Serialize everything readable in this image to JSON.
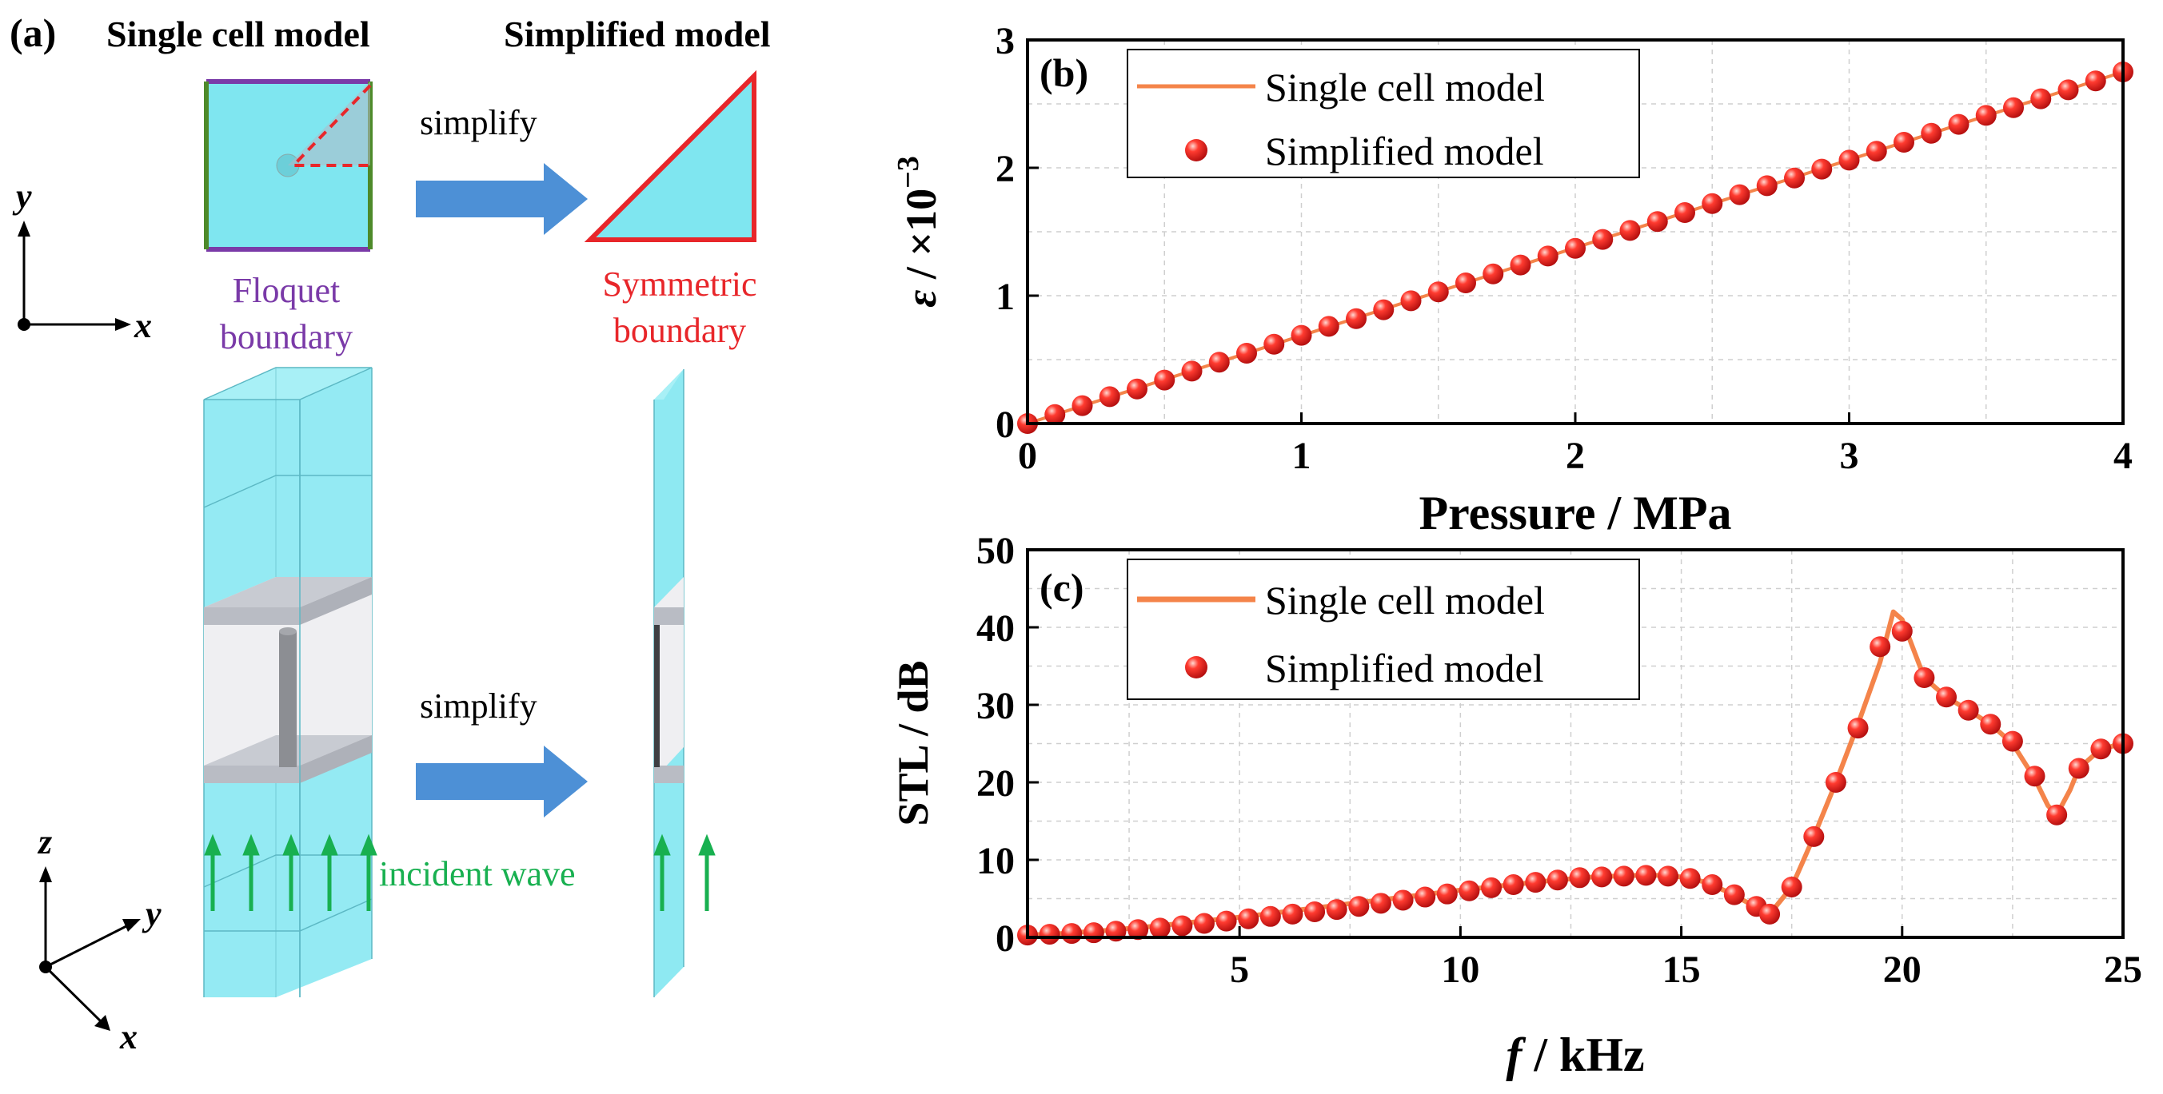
{
  "panel_a": {
    "label": "(a)",
    "single_cell_title": "Single cell model",
    "simplified_title": "Simplified model",
    "simplify_label_top": "simplify",
    "simplify_label_bottom": "simplify",
    "floquet_line1": "Floquet",
    "floquet_line2": "boundary",
    "symmetric_line1": "Symmetric",
    "symmetric_line2": "boundary",
    "incident_wave": "incident wave",
    "axis_x": "x",
    "axis_y": "y",
    "axis_z": "z",
    "colors": {
      "fluid": "#7fe6f0",
      "floquet": "#7a3aa8",
      "symmetric": "#e8262a",
      "green_edge": "#4e8a2a",
      "arrow_blue": "#4d90d6",
      "wave_green": "#18b050"
    }
  },
  "chart_data": [
    {
      "panel": "(b)",
      "type": "line",
      "xlabel": "Pressure / MPa",
      "ylabel_symbol": "ε",
      "ylabel_unit": " / ×10",
      "ylabel_exp": "−3",
      "xlim": [
        0,
        4
      ],
      "ylim": [
        0,
        3
      ],
      "xticks": [
        0,
        1,
        2,
        3,
        4
      ],
      "yticks": [
        0,
        1,
        2,
        3
      ],
      "grid": true,
      "legend_position": "top-left",
      "series": [
        {
          "name": "Single cell model",
          "style": "line",
          "color": "#f4844a",
          "x": [
            0,
            4
          ],
          "y": [
            0,
            2.75
          ]
        },
        {
          "name": "Simplified model",
          "style": "markers",
          "color": "#e8262a",
          "x": [
            0,
            0.1,
            0.2,
            0.3,
            0.4,
            0.5,
            0.6,
            0.7,
            0.8,
            0.9,
            1.0,
            1.1,
            1.2,
            1.3,
            1.4,
            1.5,
            1.6,
            1.7,
            1.8,
            1.9,
            2.0,
            2.1,
            2.2,
            2.3,
            2.4,
            2.5,
            2.6,
            2.7,
            2.8,
            2.9,
            3.0,
            3.1,
            3.2,
            3.3,
            3.4,
            3.5,
            3.6,
            3.7,
            3.8,
            3.9,
            4.0
          ],
          "y": [
            0,
            0.07,
            0.14,
            0.21,
            0.27,
            0.34,
            0.41,
            0.48,
            0.55,
            0.62,
            0.69,
            0.76,
            0.82,
            0.89,
            0.96,
            1.03,
            1.1,
            1.17,
            1.24,
            1.31,
            1.37,
            1.44,
            1.51,
            1.58,
            1.65,
            1.72,
            1.79,
            1.86,
            1.92,
            1.99,
            2.06,
            2.13,
            2.2,
            2.27,
            2.34,
            2.41,
            2.47,
            2.54,
            2.61,
            2.68,
            2.75
          ]
        }
      ]
    },
    {
      "panel": "(c)",
      "type": "line",
      "xlabel_symbol": "f",
      "xlabel_unit": " / kHz",
      "ylabel": "STL / dB",
      "xlim": [
        0.2,
        25
      ],
      "ylim": [
        0,
        50
      ],
      "xticks": [
        5,
        10,
        15,
        20,
        25
      ],
      "yticks": [
        0,
        10,
        20,
        30,
        40,
        50
      ],
      "grid": true,
      "legend_position": "top-left",
      "series": [
        {
          "name": "Single cell model",
          "style": "line",
          "color": "#f4844a",
          "x": [
            0.2,
            1,
            2,
            3,
            4,
            5,
            6,
            7,
            8,
            9,
            10,
            11,
            12,
            13,
            14,
            14.5,
            15,
            15.5,
            16,
            16.5,
            17,
            17.5,
            18,
            18.5,
            19,
            19.5,
            19.8,
            20,
            20.5,
            21,
            21.5,
            22,
            22.5,
            23,
            23.3,
            23.5,
            23.8,
            24,
            24.5,
            25
          ],
          "y": [
            0.3,
            0.5,
            0.9,
            1.4,
            2.0,
            2.6,
            3.3,
            4.0,
            4.7,
            5.4,
            6.1,
            6.7,
            7.3,
            7.8,
            8.0,
            8.0,
            7.8,
            7.2,
            6.0,
            4.5,
            3.0,
            6.5,
            13.0,
            20.0,
            27.5,
            35.5,
            42.0,
            41.0,
            33.5,
            31.0,
            29.3,
            27.5,
            25.0,
            20.5,
            17.0,
            15.8,
            19.0,
            21.8,
            24.3,
            25.0
          ]
        },
        {
          "name": "Simplified model",
          "style": "markers",
          "color": "#e8262a",
          "x": [
            0.2,
            0.7,
            1.2,
            1.7,
            2.2,
            2.7,
            3.2,
            3.7,
            4.2,
            4.7,
            5.2,
            5.7,
            6.2,
            6.7,
            7.2,
            7.7,
            8.2,
            8.7,
            9.2,
            9.7,
            10.2,
            10.7,
            11.2,
            11.7,
            12.2,
            12.7,
            13.2,
            13.7,
            14.2,
            14.7,
            15.2,
            15.7,
            16.2,
            16.7,
            17.0,
            17.5,
            18.0,
            18.5,
            19.0,
            19.5,
            20.0,
            20.5,
            21.0,
            21.5,
            22.0,
            22.5,
            23.0,
            23.5,
            24.0,
            24.5,
            25.0
          ],
          "y": [
            0.3,
            0.4,
            0.5,
            0.6,
            0.8,
            1.0,
            1.2,
            1.5,
            1.8,
            2.1,
            2.4,
            2.7,
            3.0,
            3.3,
            3.6,
            4.0,
            4.4,
            4.8,
            5.2,
            5.6,
            6.0,
            6.4,
            6.8,
            7.1,
            7.4,
            7.7,
            7.8,
            7.9,
            8.0,
            7.9,
            7.6,
            6.8,
            5.5,
            4.0,
            3.0,
            6.5,
            13.0,
            20.0,
            27.0,
            37.5,
            39.5,
            33.5,
            31.0,
            29.3,
            27.5,
            25.3,
            20.8,
            15.8,
            21.8,
            24.3,
            25.0
          ]
        }
      ]
    }
  ]
}
